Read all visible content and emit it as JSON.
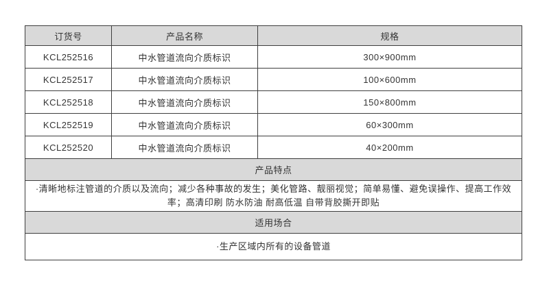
{
  "table": {
    "columns": [
      {
        "label": "订货号"
      },
      {
        "label": "产品名称"
      },
      {
        "label": "规格"
      }
    ],
    "rows": [
      {
        "code": "KCL252516",
        "name": "中水管道流向介质标识",
        "spec": "300×900mm"
      },
      {
        "code": "KCL252517",
        "name": "中水管道流向介质标识",
        "spec": "100×600mm"
      },
      {
        "code": "KCL252518",
        "name": "中水管道流向介质标识",
        "spec": "150×800mm"
      },
      {
        "code": "KCL252519",
        "name": "中水管道流向介质标识",
        "spec": "60×300mm"
      },
      {
        "code": "KCL252520",
        "name": "中水管道流向介质标识",
        "spec": "40×200mm"
      }
    ]
  },
  "sections": {
    "features": {
      "header": "产品特点",
      "body": "·清晰地标注管道的介质以及流向；减少各种事故的发生；美化管路、靓丽视觉；简单易懂、避免误操作、提高工作效率；高清印刷 防水防油 耐高低温 自带背胶撕开即贴"
    },
    "applications": {
      "header": "适用场合",
      "body": "·生产区域内所有的设备管道"
    }
  },
  "colors": {
    "header_bg": "#d9d9d9",
    "border": "#3d3d3d",
    "text": "#333333",
    "background": "#ffffff"
  }
}
